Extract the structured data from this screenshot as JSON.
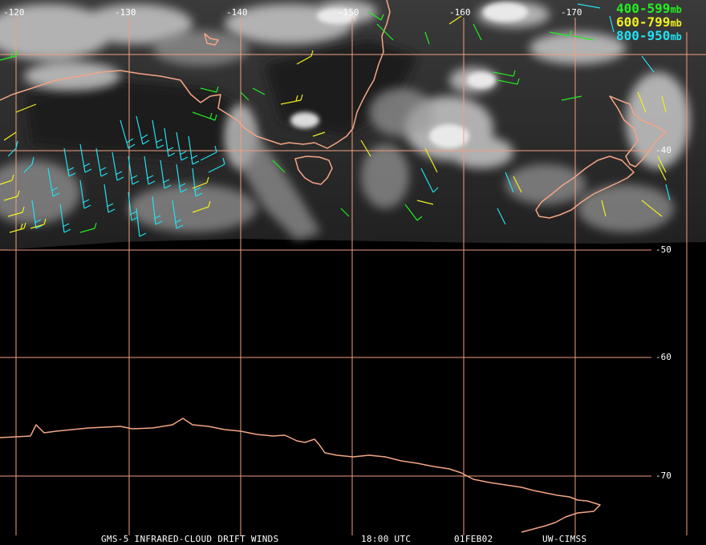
{
  "map": {
    "title": "GMS-5 INFRARED-CLOUD DRIFT WINDS",
    "time": "18:00 UTC",
    "date": "01FEB02",
    "source": "UW-CIMSS",
    "longitude_labels": [
      "-120",
      "-130",
      "-140",
      "-150",
      "-160",
      "-170"
    ],
    "latitude_labels": [
      "-40",
      "-50",
      "-60",
      "-70"
    ],
    "colors": {
      "grid": "#f0a080",
      "coastline": "#f4a585",
      "level_400_599": "#22ee22",
      "level_600_799": "#f0f020",
      "level_800_950": "#22e0f0"
    },
    "legend": [
      {
        "range": "400-599",
        "unit": "mb",
        "color": "#22ee22"
      },
      {
        "range": "600-799",
        "unit": "mb",
        "color": "#f0f020"
      },
      {
        "range": "800-950",
        "unit": "mb",
        "color": "#22e0f0"
      }
    ]
  }
}
